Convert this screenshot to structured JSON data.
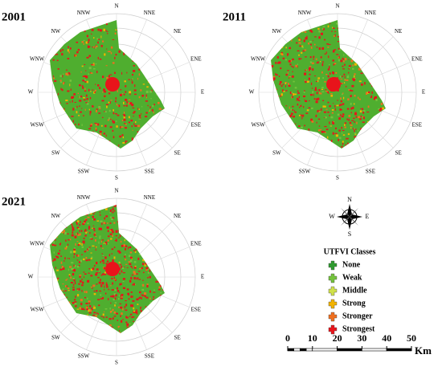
{
  "panels": [
    {
      "year": "2001"
    },
    {
      "year": "2011"
    },
    {
      "year": "2021"
    }
  ],
  "directions": [
    "N",
    "NNE",
    "NE",
    "ENE",
    "E",
    "ESE",
    "SE",
    "SSE",
    "S",
    "SSW",
    "SW",
    "WSW",
    "W",
    "WNW",
    "NW",
    "NNW"
  ],
  "legend": {
    "compass": [
      "N",
      "E",
      "S",
      "W"
    ],
    "title": "UTFVI Classes",
    "classes": [
      {
        "label": "None",
        "color": "#2f9a2f"
      },
      {
        "label": "Weak",
        "color": "#74c23c"
      },
      {
        "label": "Middle",
        "color": "#cfe04a"
      },
      {
        "label": "Strong",
        "color": "#f2b300"
      },
      {
        "label": "Stronger",
        "color": "#ef6f1f"
      },
      {
        "label": "Strongest",
        "color": "#e8141b"
      }
    ]
  },
  "scale_bar": {
    "ticks": [
      0,
      10,
      20,
      30,
      40,
      50
    ],
    "unit": "Km"
  }
}
